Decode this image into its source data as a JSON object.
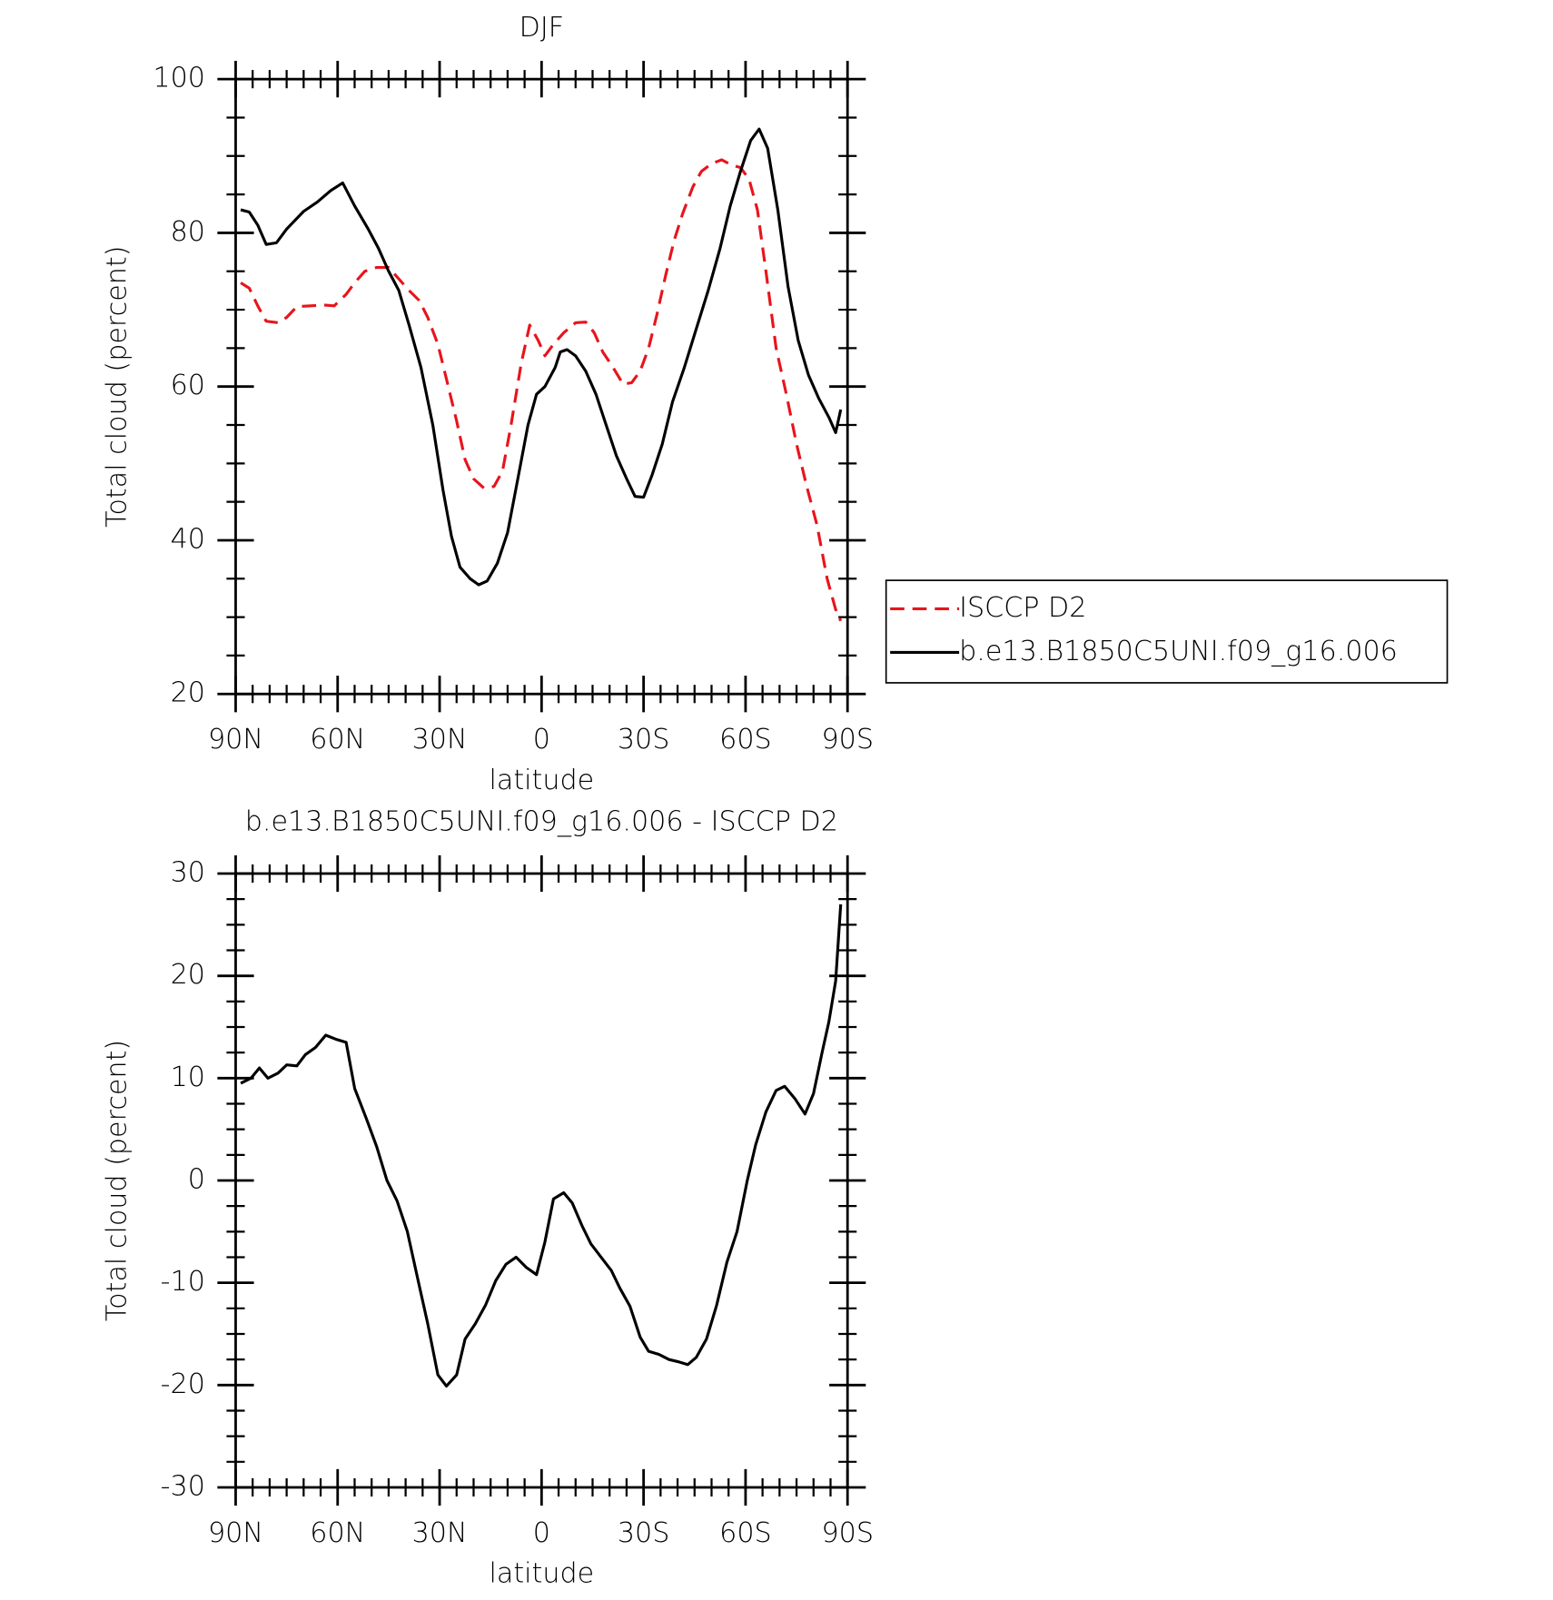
{
  "chart_data": [
    {
      "type": "line",
      "title": "DJF",
      "xlabel": "latitude",
      "ylabel": "Total cloud (percent)",
      "xlim": [
        90,
        -90
      ],
      "xticks": [
        {
          "value": 90,
          "label": "90N"
        },
        {
          "value": 60,
          "label": "60N"
        },
        {
          "value": 30,
          "label": "30N"
        },
        0,
        {
          "value": -30,
          "label": "30S"
        },
        {
          "value": -60,
          "label": "60S"
        },
        {
          "value": -90,
          "label": "90S"
        }
      ],
      "ylim": [
        20,
        100
      ],
      "yticks": [
        20,
        40,
        60,
        80,
        100
      ],
      "series": [
        {
          "name": "ISCCP D2",
          "color": "#e8141c",
          "dash": true,
          "x": [
            88.5,
            86,
            83.5,
            81,
            77.5,
            75,
            72,
            68,
            64,
            61,
            57.5,
            55,
            52,
            48.5,
            45,
            42,
            39,
            36,
            33.5,
            30.5,
            28,
            25,
            22.5,
            20,
            17,
            14,
            11.5,
            9,
            6,
            3.5,
            1,
            -1,
            -3.5,
            -6.5,
            -10,
            -13,
            -15.5,
            -18,
            -21,
            -24,
            -26.5,
            -29,
            -31.5,
            -34,
            -36.5,
            -39,
            -41.5,
            -44.5,
            -47,
            -50,
            -53,
            -56,
            -58.5,
            -61,
            -63.5,
            -66,
            -69,
            -72,
            -75,
            -78,
            -81,
            -84,
            -86.5,
            -88
          ],
          "values": [
            73.5,
            72.8,
            70.5,
            68.5,
            68.3,
            69,
            70.4,
            70.5,
            70.6,
            70.5,
            72,
            73.5,
            75,
            75.5,
            75.5,
            74,
            72.5,
            71.2,
            69,
            65.5,
            61,
            55.5,
            50.5,
            48,
            46.8,
            47,
            49,
            55,
            63,
            68,
            66,
            64,
            65.5,
            67,
            68.3,
            68.4,
            67,
            64.5,
            62.5,
            60.3,
            60.5,
            62,
            65,
            69.5,
            74.5,
            79,
            82.5,
            86,
            88,
            89,
            89.5,
            88.8,
            88.5,
            87,
            83,
            75,
            65,
            59,
            52.5,
            47,
            42,
            35,
            31,
            29.5
          ]
        },
        {
          "name": "b.e13.B1850C5UNI.f09_g16.006",
          "color": "#000000",
          "dash": false,
          "x": [
            88.5,
            86,
            83.5,
            81,
            78,
            75,
            70,
            66,
            62,
            58.5,
            55,
            51,
            48,
            45,
            42,
            39,
            35.5,
            32,
            29,
            26.5,
            24,
            21,
            18.5,
            16,
            13,
            10,
            7,
            4,
            1.5,
            -1,
            -4,
            -5.5,
            -7.5,
            -10,
            -13,
            -16,
            -19,
            -22,
            -25,
            -27.5,
            -30,
            -32.5,
            -35.5,
            -38.5,
            -42,
            -45.5,
            -49,
            -52.5,
            -55.5,
            -58.5,
            -61.5,
            -64,
            -66.5,
            -69.5,
            -72.5,
            -75.5,
            -78.5,
            -81.5,
            -84.5,
            -86.5,
            -88
          ],
          "values": [
            83,
            82.7,
            81,
            78.5,
            78.7,
            80.5,
            82.8,
            84,
            85.5,
            86.5,
            83.5,
            80.5,
            78,
            75,
            72.5,
            68,
            62.5,
            55,
            46.5,
            40.5,
            36.5,
            35,
            34.2,
            34.7,
            37,
            41,
            48,
            55,
            59,
            60,
            62.5,
            64.5,
            64.8,
            64,
            62,
            59,
            55,
            51,
            48,
            45.7,
            45.6,
            48.5,
            52.5,
            58,
            62.5,
            67.5,
            72.5,
            78,
            83.5,
            88,
            92,
            93.5,
            91,
            83,
            73,
            66,
            61.5,
            58.5,
            56,
            54,
            57
          ]
        }
      ]
    },
    {
      "type": "line",
      "title": "b.e13.B1850C5UNI.f09_g16.006 - ISCCP D2",
      "xlabel": "latitude",
      "ylabel": "Total cloud (percent)",
      "xlim": [
        90,
        -90
      ],
      "xticks": [
        {
          "value": 90,
          "label": "90N"
        },
        {
          "value": 60,
          "label": "60N"
        },
        {
          "value": 30,
          "label": "30N"
        },
        0,
        {
          "value": -30,
          "label": "30S"
        },
        {
          "value": -60,
          "label": "60S"
        },
        {
          "value": -90,
          "label": "90S"
        }
      ],
      "ylim": [
        -30,
        30
      ],
      "yticks": [
        -30,
        -20,
        -10,
        0,
        10,
        20,
        30
      ],
      "series": [
        {
          "color": "#000000",
          "dash": false,
          "x": [
            88.5,
            85.5,
            83,
            80.5,
            77.5,
            75,
            72,
            69.5,
            66.5,
            63.5,
            60.5,
            57.5,
            55,
            51.5,
            48.5,
            45.5,
            42.5,
            39.5,
            36.5,
            33.5,
            30.5,
            28,
            25,
            22.5,
            19.5,
            16.5,
            13.5,
            10.5,
            7.5,
            4.5,
            1.5,
            -1,
            -3.5,
            -6.5,
            -9,
            -12,
            -14.5,
            -17.5,
            -20.5,
            -23,
            -26,
            -29,
            -31.5,
            -34.5,
            -37.5,
            -40,
            -43,
            -45.5,
            -48.5,
            -51.5,
            -54.5,
            -57.5,
            -60.5,
            -63,
            -66,
            -69,
            -71.5,
            -74.5,
            -77.5,
            -80,
            -82.5,
            -84.5,
            -86.5,
            -88
          ],
          "values": [
            9.5,
            10,
            11,
            10,
            10.5,
            11.3,
            11.2,
            12.3,
            13,
            14.2,
            13.8,
            13.5,
            9,
            6,
            3.3,
            0,
            -2,
            -5,
            -9.5,
            -14,
            -19,
            -20.1,
            -19,
            -15.5,
            -14,
            -12.2,
            -9.8,
            -8.2,
            -7.5,
            -8.5,
            -9.2,
            -6,
            -1.8,
            -1.2,
            -2.2,
            -4.5,
            -6.2,
            -7.5,
            -8.8,
            -10.5,
            -12.3,
            -15.3,
            -16.7,
            -17,
            -17.5,
            -17.7,
            -18,
            -17.3,
            -15.5,
            -12.2,
            -8,
            -5,
            0,
            3.5,
            6.7,
            8.8,
            9.2,
            8,
            6.5,
            8.5,
            12.5,
            15.5,
            19.5,
            27
          ]
        }
      ]
    }
  ]
}
